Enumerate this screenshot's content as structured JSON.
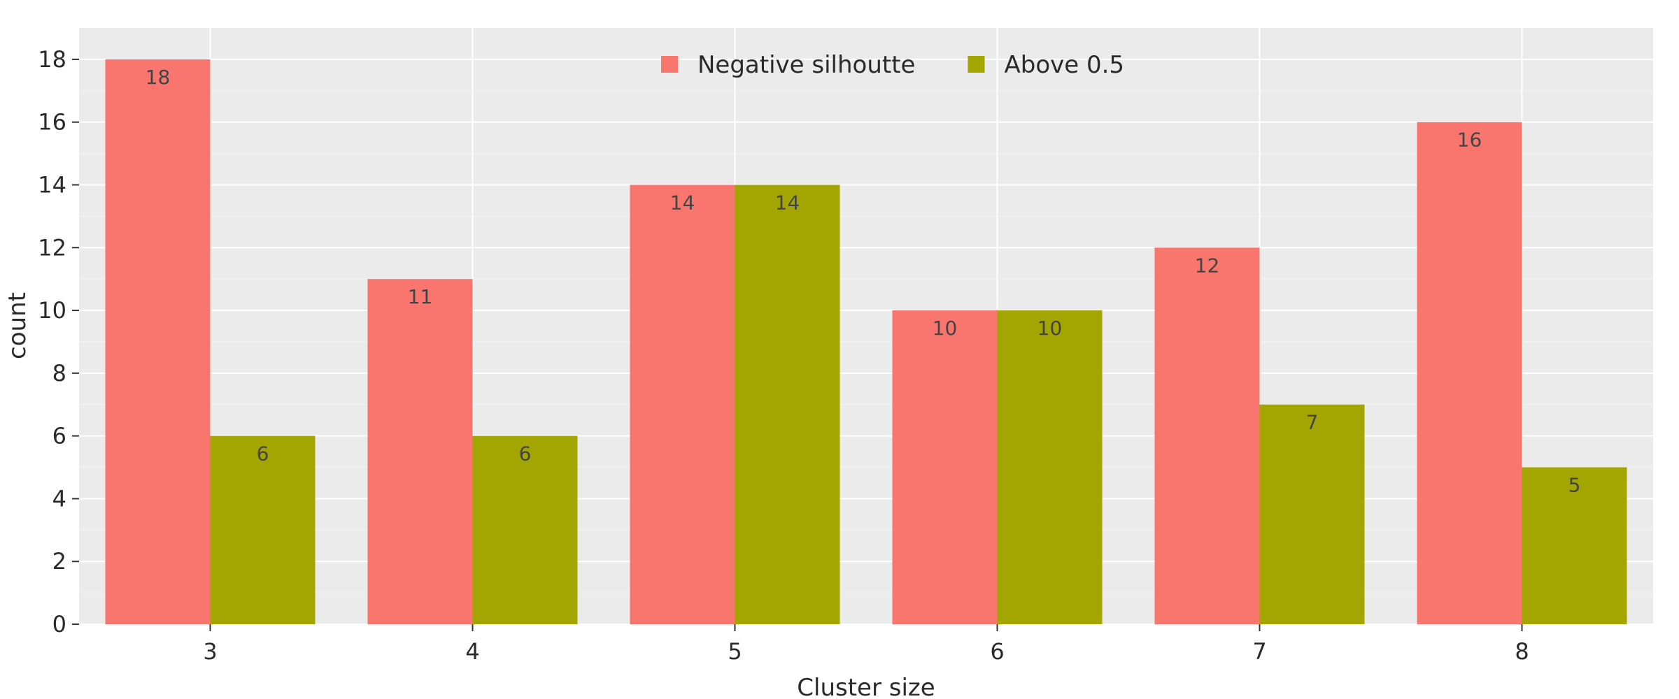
{
  "chart_data": {
    "type": "bar",
    "title": "",
    "xlabel": "Cluster size",
    "ylabel": "count",
    "categories": [
      "3",
      "4",
      "5",
      "6",
      "7",
      "8"
    ],
    "series": [
      {
        "name": "Negative silhoutte",
        "color": "#f8766d",
        "values": [
          18,
          11,
          14,
          10,
          12,
          16
        ]
      },
      {
        "name": "Above 0.5",
        "color": "#a3a500",
        "values": [
          6,
          6,
          14,
          10,
          7,
          5
        ]
      }
    ],
    "ylim": [
      0,
      19
    ],
    "yticks": [
      0,
      2,
      4,
      6,
      8,
      10,
      12,
      14,
      16,
      18
    ],
    "grid": true,
    "legend_position": "top-center",
    "plot_background": "#ebebeb"
  }
}
